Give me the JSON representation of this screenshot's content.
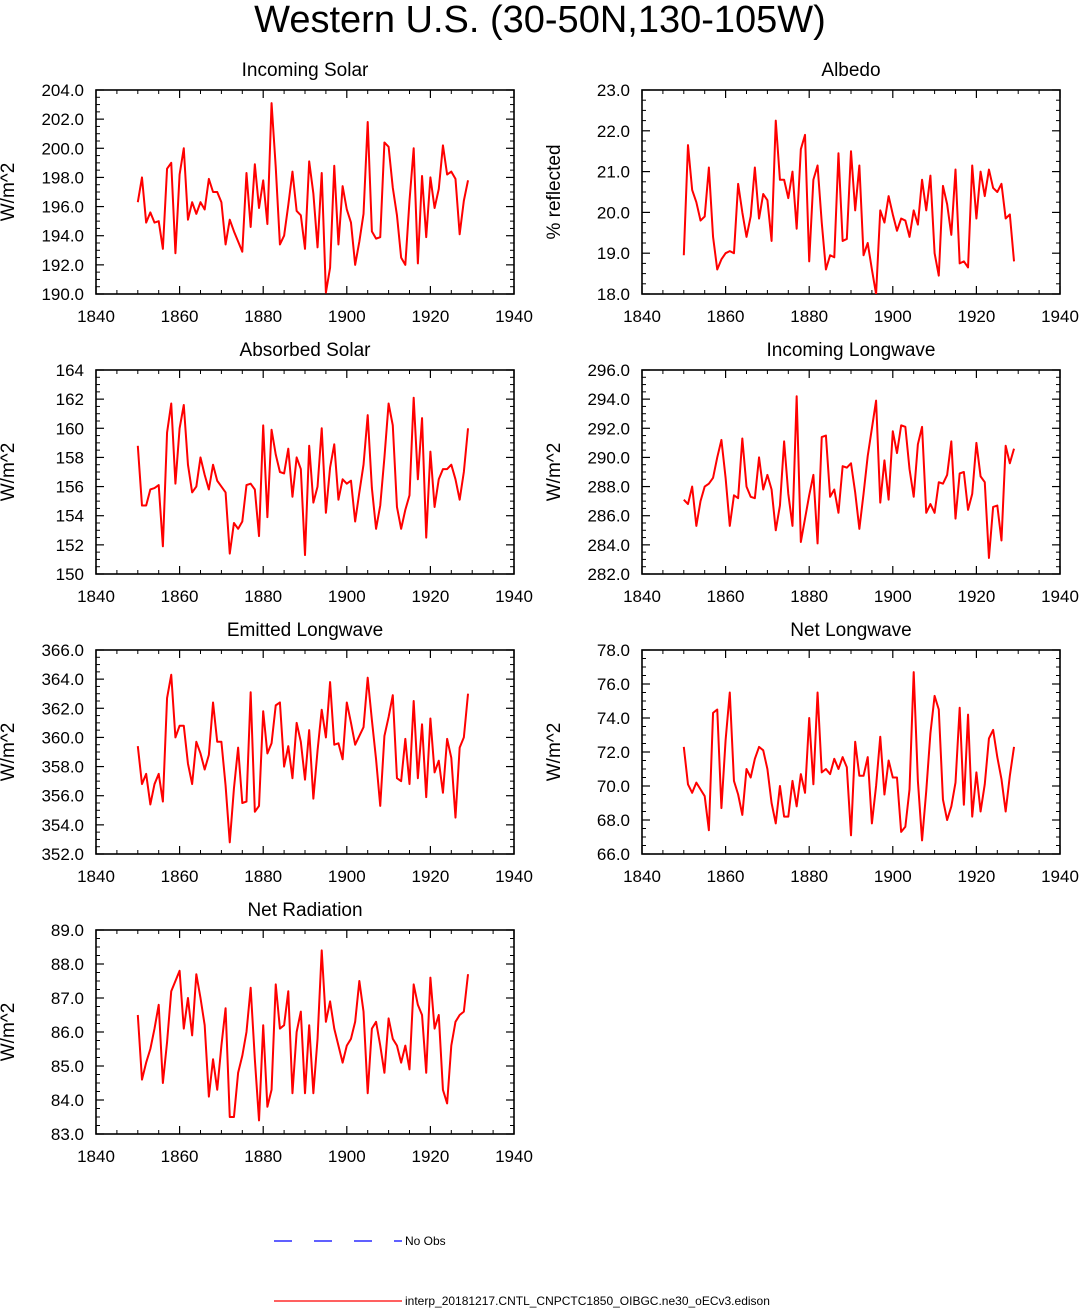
{
  "page": {
    "title": "Western U.S. (30-50N,130-105W)"
  },
  "colors": {
    "model_line": "#ff0000",
    "obs_line": "#0000ff",
    "axis": "#000000"
  },
  "legend": {
    "obs_label": "No Obs",
    "model_label": "interp_20181217.CNTL_CNPCTC1850_OIBGC.ne30_oECv3.edison"
  },
  "chart_data": [
    {
      "type": "line",
      "title": "Incoming Solar",
      "ylabel": "W/m^2",
      "xlim": [
        1840,
        1940
      ],
      "ylim": [
        190,
        204
      ],
      "x_ticks": [
        1840,
        1860,
        1880,
        1900,
        1920,
        1940
      ],
      "y_ticks": [
        190,
        192,
        194,
        196,
        198,
        200,
        202,
        204
      ],
      "y_decimals": 1,
      "x_start": 1850,
      "values": [
        196.3,
        198.0,
        194.9,
        195.6,
        194.9,
        195.0,
        193.1,
        198.6,
        199.0,
        192.8,
        198.2,
        200.0,
        195.1,
        196.3,
        195.5,
        196.3,
        195.8,
        197.9,
        197.0,
        197.0,
        196.3,
        193.4,
        195.1,
        194.3,
        193.6,
        192.9,
        198.3,
        194.6,
        198.9,
        195.9,
        197.8,
        194.8,
        203.1,
        198.7,
        193.4,
        194.0,
        196.1,
        198.4,
        195.7,
        195.4,
        193.1,
        199.1,
        196.9,
        193.2,
        198.3,
        190.1,
        191.8,
        198.8,
        193.4,
        197.4,
        195.8,
        194.9,
        192.0,
        193.6,
        195.5,
        201.8,
        194.3,
        193.8,
        193.9,
        200.4,
        200.1,
        197.3,
        195.4,
        192.5,
        192.0,
        196.4,
        200.0,
        192.1,
        198.1,
        193.9,
        198.0,
        195.9,
        197.2,
        200.2,
        198.2,
        198.4,
        197.9,
        194.1,
        196.4,
        197.8
      ]
    },
    {
      "type": "line",
      "title": "Albedo",
      "ylabel": "% reflected",
      "xlim": [
        1840,
        1940
      ],
      "ylim": [
        18,
        23
      ],
      "x_ticks": [
        1840,
        1860,
        1880,
        1900,
        1920,
        1940
      ],
      "y_ticks": [
        18,
        19,
        20,
        21,
        22,
        23
      ],
      "y_decimals": 1,
      "x_start": 1850,
      "values": [
        18.95,
        21.65,
        20.55,
        20.25,
        19.8,
        19.9,
        21.1,
        19.4,
        18.6,
        18.85,
        19.0,
        19.05,
        19.0,
        20.7,
        20.0,
        19.4,
        19.9,
        21.1,
        19.85,
        20.45,
        20.3,
        19.3,
        22.25,
        20.8,
        20.8,
        20.35,
        21.0,
        19.6,
        21.55,
        21.9,
        18.8,
        20.8,
        21.15,
        19.75,
        18.6,
        18.95,
        18.9,
        21.45,
        19.3,
        19.35,
        21.5,
        20.05,
        21.15,
        18.95,
        19.25,
        18.6,
        18.0,
        20.05,
        19.75,
        20.4,
        19.95,
        19.55,
        19.85,
        19.8,
        19.4,
        20.05,
        19.7,
        20.8,
        20.05,
        20.9,
        19.0,
        18.45,
        20.65,
        20.2,
        19.45,
        21.05,
        18.75,
        18.8,
        18.65,
        21.15,
        19.85,
        21.0,
        20.4,
        21.05,
        20.6,
        20.5,
        20.7,
        19.85,
        19.95,
        18.8
      ]
    },
    {
      "type": "line",
      "title": "Absorbed Solar",
      "ylabel": "W/m^2",
      "xlim": [
        1840,
        1940
      ],
      "ylim": [
        150,
        164
      ],
      "x_ticks": [
        1840,
        1860,
        1880,
        1900,
        1920,
        1940
      ],
      "y_ticks": [
        150,
        152,
        154,
        156,
        158,
        160,
        162,
        164
      ],
      "y_decimals": 0,
      "x_start": 1850,
      "values": [
        158.8,
        154.7,
        154.7,
        155.8,
        155.9,
        156.1,
        151.9,
        159.7,
        161.7,
        156.2,
        160.0,
        161.6,
        157.5,
        155.6,
        156.0,
        158.0,
        156.8,
        155.8,
        157.5,
        156.4,
        156.0,
        155.6,
        151.4,
        153.5,
        153.1,
        153.6,
        156.1,
        156.2,
        155.8,
        152.6,
        160.2,
        153.9,
        159.9,
        158.2,
        157.0,
        156.9,
        158.6,
        155.3,
        158.0,
        157.2,
        151.3,
        158.8,
        154.9,
        156.0,
        160.0,
        154.2,
        157.3,
        158.9,
        155.1,
        156.5,
        156.2,
        156.4,
        153.6,
        155.6,
        157.5,
        160.9,
        155.9,
        153.1,
        154.7,
        158.0,
        161.7,
        160.2,
        154.6,
        153.1,
        154.4,
        155.4,
        162.1,
        156.5,
        160.7,
        152.5,
        158.4,
        154.6,
        156.5,
        157.2,
        157.2,
        157.5,
        156.5,
        155.1,
        157.0,
        160.0
      ]
    },
    {
      "type": "line",
      "title": "Incoming Longwave",
      "ylabel": "W/m^2",
      "xlim": [
        1840,
        1940
      ],
      "ylim": [
        282,
        296
      ],
      "x_ticks": [
        1840,
        1860,
        1880,
        1900,
        1920,
        1940
      ],
      "y_ticks": [
        282,
        284,
        286,
        288,
        290,
        292,
        294,
        296
      ],
      "y_decimals": 1,
      "x_start": 1850,
      "values": [
        287.1,
        286.8,
        288.0,
        285.3,
        287.0,
        288.0,
        288.2,
        288.6,
        290.0,
        291.2,
        288.6,
        285.3,
        287.4,
        287.2,
        291.3,
        288.0,
        287.3,
        287.2,
        290.0,
        287.8,
        288.8,
        287.8,
        285.0,
        286.7,
        291.1,
        287.5,
        285.3,
        294.2,
        284.2,
        285.8,
        287.4,
        288.8,
        284.1,
        291.4,
        291.5,
        287.3,
        287.8,
        286.2,
        289.4,
        289.3,
        289.6,
        287.6,
        285.1,
        287.5,
        290.1,
        292.0,
        293.9,
        286.9,
        289.8,
        287.1,
        291.8,
        290.3,
        292.2,
        292.1,
        289.2,
        287.3,
        290.9,
        292.1,
        286.2,
        286.8,
        286.2,
        288.3,
        288.2,
        288.8,
        291.1,
        285.8,
        288.9,
        289.0,
        286.4,
        287.5,
        291.0,
        288.7,
        288.3,
        283.1,
        286.6,
        286.7,
        284.3,
        290.8,
        289.6,
        290.6
      ]
    },
    {
      "type": "line",
      "title": "Emitted Longwave",
      "ylabel": "W/m^2",
      "xlim": [
        1840,
        1940
      ],
      "ylim": [
        352,
        366
      ],
      "x_ticks": [
        1840,
        1860,
        1880,
        1900,
        1920,
        1940
      ],
      "y_ticks": [
        352,
        354,
        356,
        358,
        360,
        362,
        364,
        366
      ],
      "y_decimals": 1,
      "x_start": 1850,
      "values": [
        359.4,
        356.8,
        357.5,
        355.4,
        356.8,
        357.5,
        355.6,
        362.7,
        364.3,
        360.0,
        360.8,
        360.8,
        358.2,
        356.8,
        359.7,
        358.9,
        357.8,
        358.8,
        362.4,
        359.7,
        359.7,
        356.7,
        352.8,
        356.5,
        359.3,
        355.5,
        355.6,
        363.1,
        354.9,
        355.3,
        361.8,
        358.9,
        359.6,
        362.2,
        362.4,
        358.0,
        359.4,
        357.2,
        361.0,
        359.7,
        357.1,
        360.5,
        355.8,
        359.1,
        361.9,
        360.0,
        363.8,
        359.5,
        359.6,
        358.5,
        362.4,
        361.0,
        359.5,
        360.1,
        360.7,
        364.1,
        361.2,
        358.5,
        355.3,
        360.1,
        361.4,
        362.9,
        357.2,
        357.0,
        359.9,
        356.8,
        362.5,
        357.2,
        360.9,
        355.9,
        361.3,
        357.6,
        358.4,
        356.2,
        359.9,
        358.6,
        354.5,
        359.3,
        360.0,
        363.0
      ]
    },
    {
      "type": "line",
      "title": "Net Longwave",
      "ylabel": "W/m^2",
      "xlim": [
        1840,
        1940
      ],
      "ylim": [
        66,
        78
      ],
      "x_ticks": [
        1840,
        1860,
        1880,
        1900,
        1920,
        1940
      ],
      "y_ticks": [
        66,
        68,
        70,
        72,
        74,
        76,
        78
      ],
      "y_decimals": 1,
      "x_start": 1850,
      "values": [
        72.3,
        70.1,
        69.6,
        70.2,
        69.8,
        69.4,
        67.4,
        74.3,
        74.5,
        68.7,
        72.7,
        75.5,
        70.3,
        69.5,
        68.3,
        71.0,
        70.5,
        71.6,
        72.3,
        72.1,
        71.0,
        69.0,
        67.8,
        70.0,
        68.2,
        68.2,
        70.3,
        68.8,
        70.7,
        69.6,
        74.0,
        70.1,
        75.5,
        70.8,
        71.0,
        70.7,
        71.6,
        71.0,
        71.7,
        71.1,
        67.1,
        72.6,
        70.6,
        70.6,
        71.7,
        67.8,
        70.0,
        72.9,
        69.5,
        71.5,
        70.5,
        70.5,
        67.3,
        67.6,
        69.8,
        76.7,
        70.3,
        66.8,
        69.7,
        73.1,
        75.3,
        74.5,
        69.2,
        68.0,
        68.8,
        70.2,
        74.6,
        68.9,
        74.2,
        68.2,
        70.8,
        68.5,
        70.1,
        72.8,
        73.3,
        71.7,
        70.4,
        68.5,
        70.6,
        72.3
      ]
    },
    {
      "type": "line",
      "title": "Net Radiation",
      "ylabel": "W/m^2",
      "xlim": [
        1840,
        1940
      ],
      "ylim": [
        83,
        89
      ],
      "x_ticks": [
        1840,
        1860,
        1880,
        1900,
        1920,
        1940
      ],
      "y_ticks": [
        83,
        84,
        85,
        86,
        87,
        88,
        89
      ],
      "y_decimals": 1,
      "x_start": 1850,
      "values": [
        86.5,
        84.6,
        85.1,
        85.5,
        86.1,
        86.8,
        84.5,
        85.7,
        87.2,
        87.5,
        87.8,
        86.1,
        87.0,
        85.9,
        87.7,
        87.0,
        86.2,
        84.1,
        85.2,
        84.3,
        85.6,
        86.7,
        83.5,
        83.5,
        84.8,
        85.3,
        86.0,
        87.3,
        85.2,
        83.4,
        86.2,
        83.8,
        84.3,
        87.4,
        86.1,
        86.2,
        87.2,
        84.2,
        86.0,
        86.6,
        84.2,
        86.2,
        84.2,
        85.8,
        88.4,
        86.3,
        86.9,
        86.1,
        85.6,
        85.1,
        85.6,
        85.8,
        86.3,
        87.5,
        86.6,
        84.2,
        86.1,
        86.3,
        85.6,
        84.8,
        86.4,
        85.8,
        85.6,
        85.1,
        85.6,
        84.9,
        87.4,
        86.8,
        86.5,
        84.8,
        87.6,
        86.1,
        86.5,
        84.3,
        83.9,
        85.6,
        86.3,
        86.5,
        86.6,
        87.7
      ]
    }
  ]
}
